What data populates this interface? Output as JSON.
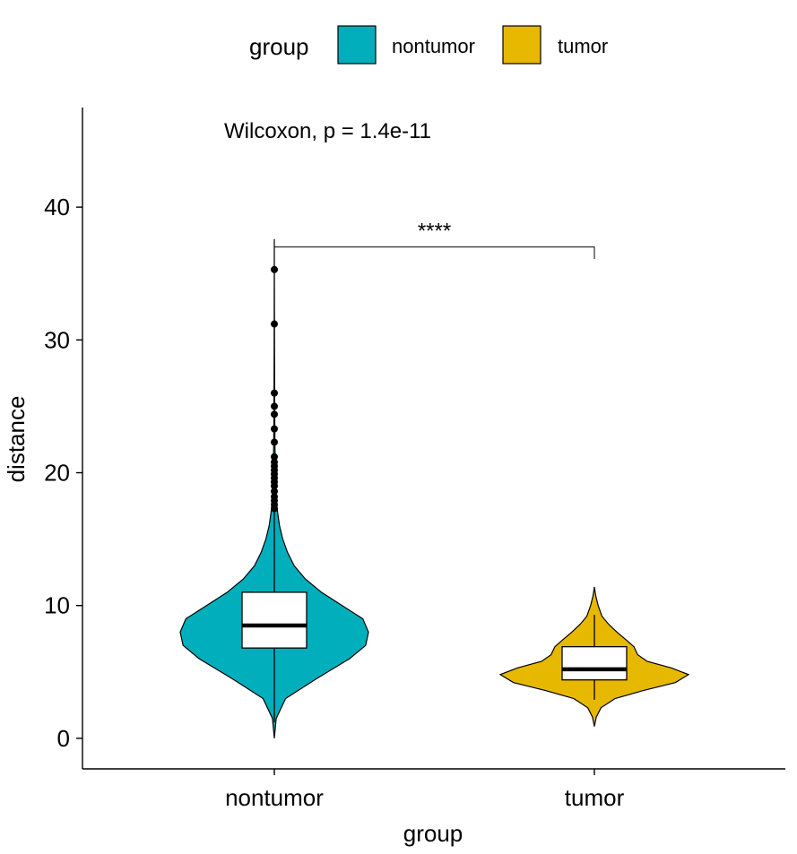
{
  "chart_data": {
    "type": "violin",
    "xlabel": "group",
    "ylabel": "distance",
    "categories": [
      "nontumor",
      "tumor"
    ],
    "ylim": [
      -2.3,
      47.5
    ],
    "yticks": [
      "0",
      "10",
      "20",
      "30",
      "40"
    ],
    "grid": false,
    "legend": {
      "title": "group",
      "position": "top",
      "entries": [
        {
          "label": "nontumor",
          "color": "#00AFBB"
        },
        {
          "label": "tumor",
          "color": "#E7B800"
        }
      ]
    },
    "test_label": "Wilcoxon, p = 1.4e-11",
    "significance": {
      "label": "****",
      "from": "nontumor",
      "to": "tumor",
      "y": 37,
      "drop_left": 36.9,
      "drop_right": 36.1
    },
    "groups": [
      {
        "name": "nontumor",
        "color": "#00AFBB",
        "violin_min": 0,
        "violin_max": 37.6,
        "violin_width": [
          [
            0,
            0.0
          ],
          [
            1.5,
            0.02
          ],
          [
            3,
            0.12
          ],
          [
            4.5,
            0.45
          ],
          [
            6,
            0.8
          ],
          [
            7,
            0.97
          ],
          [
            8,
            1.0
          ],
          [
            9,
            0.94
          ],
          [
            10,
            0.72
          ],
          [
            11,
            0.5
          ],
          [
            12,
            0.33
          ],
          [
            13,
            0.21
          ],
          [
            14,
            0.14
          ],
          [
            15,
            0.09
          ],
          [
            16,
            0.055
          ],
          [
            17,
            0.035
          ],
          [
            18,
            0.02
          ],
          [
            20,
            0.013
          ],
          [
            22,
            0.007
          ],
          [
            25,
            0.004
          ],
          [
            30,
            0.002
          ],
          [
            34,
            0.001
          ],
          [
            37.6,
            0.0
          ]
        ],
        "box": {
          "whisker_low": 1.2,
          "q1": 6.8,
          "median": 8.5,
          "q3": 11,
          "whisker_high": 17.2
        },
        "outliers": [
          17.3,
          17.6,
          17.9,
          18.2,
          18.6,
          19.0,
          19.3,
          19.6,
          19.9,
          20.2,
          20.5,
          20.8,
          21.2,
          22.3,
          23.3,
          24.4,
          25.0,
          26.0,
          31.2,
          35.3
        ]
      },
      {
        "name": "tumor",
        "color": "#E7B800",
        "violin_min": 0.9,
        "violin_max": 11.4,
        "violin_width": [
          [
            0.9,
            0.0
          ],
          [
            1.6,
            0.02
          ],
          [
            2.3,
            0.07
          ],
          [
            3.0,
            0.22
          ],
          [
            3.6,
            0.52
          ],
          [
            4.2,
            0.86
          ],
          [
            4.8,
            1.0
          ],
          [
            5.3,
            0.82
          ],
          [
            5.8,
            0.56
          ],
          [
            6.3,
            0.46
          ],
          [
            6.9,
            0.42
          ],
          [
            7.4,
            0.34
          ],
          [
            8.0,
            0.24
          ],
          [
            8.6,
            0.15
          ],
          [
            9.2,
            0.08
          ],
          [
            10.0,
            0.04
          ],
          [
            10.7,
            0.015
          ],
          [
            11.4,
            0.0
          ]
        ],
        "box": {
          "whisker_low": 2.9,
          "q1": 4.4,
          "median": 5.2,
          "q3": 6.9,
          "whisker_high": 9.3
        },
        "outliers": []
      }
    ]
  }
}
